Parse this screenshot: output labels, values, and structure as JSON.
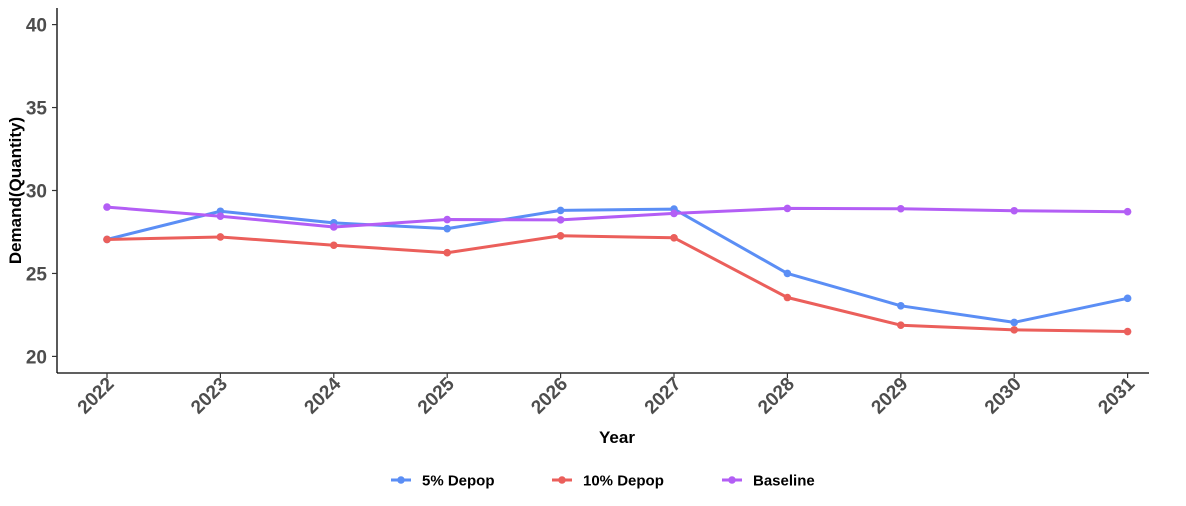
{
  "chart_data": {
    "type": "line",
    "xlabel": "Year",
    "ylabel": "Demand(Quantity)",
    "ylim": [
      19,
      41
    ],
    "yticks": [
      20,
      25,
      30,
      35,
      40
    ],
    "x": [
      "2022",
      "2023",
      "2024",
      "2025",
      "2026",
      "2027",
      "2028",
      "2029",
      "2030",
      "2031"
    ],
    "grid": false,
    "legend_position": "bottom",
    "series": [
      {
        "name": "5% Depop",
        "color": "#5b8ef5",
        "values": [
          27.05,
          28.75,
          28.05,
          27.7,
          28.8,
          28.88,
          25.0,
          23.05,
          22.05,
          23.5
        ]
      },
      {
        "name": "10% Depop",
        "color": "#eb5f5b",
        "values": [
          27.05,
          27.2,
          26.7,
          26.25,
          27.27,
          27.15,
          23.55,
          21.88,
          21.6,
          21.5
        ]
      },
      {
        "name": "Baseline",
        "color": "#b35ef5",
        "values": [
          29.0,
          28.45,
          27.8,
          28.25,
          28.23,
          28.62,
          28.92,
          28.9,
          28.78,
          28.72
        ]
      }
    ]
  }
}
